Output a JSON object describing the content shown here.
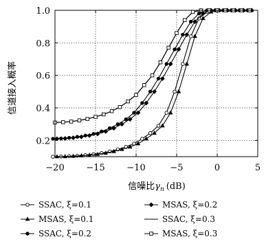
{
  "chart_data": {
    "type": "line",
    "title": "",
    "xlabel": "信噪比γn (dB)",
    "xlabel_parts": {
      "prefix": "信噪比",
      "symbol": "γ",
      "subscript": "n",
      "unit": "(dB)"
    },
    "ylabel": "信道接入概率",
    "xlim": [
      -20,
      5
    ],
    "ylim": [
      0.1,
      1.0
    ],
    "x_ticks": [
      -20,
      -15,
      -10,
      -5,
      0,
      5
    ],
    "x_tick_labels": [
      "−20",
      "−15",
      "−10",
      "−5",
      "0",
      "5"
    ],
    "y_ticks": [
      0.2,
      0.4,
      0.6,
      0.8,
      1.0
    ],
    "y_tick_labels": [
      "0.2",
      "0.4",
      "0.6",
      "0.8",
      "1.0"
    ],
    "grid": true,
    "legend_position": "bottom",
    "x": [
      -20,
      -19,
      -18,
      -17,
      -16,
      -15,
      -14,
      -13,
      -12,
      -11,
      -10,
      -9,
      -8,
      -7,
      -6,
      -5,
      -4,
      -3,
      -2,
      -1,
      0,
      1,
      2,
      3,
      4
    ],
    "series": [
      {
        "name": "SSAC, ξ=0.1",
        "marker": "circle-open",
        "values": [
          0.1,
          0.101,
          0.103,
          0.106,
          0.11,
          0.115,
          0.122,
          0.132,
          0.145,
          0.16,
          0.18,
          0.21,
          0.245,
          0.29,
          0.37,
          0.5,
          0.67,
          0.84,
          0.95,
          0.99,
          1.0,
          1.0,
          1.0,
          1.0,
          1.0
        ]
      },
      {
        "name": "MSAS, ξ=0.1",
        "marker": "triangle",
        "values": [
          0.1,
          0.101,
          0.103,
          0.106,
          0.11,
          0.115,
          0.122,
          0.132,
          0.145,
          0.16,
          0.18,
          0.21,
          0.245,
          0.29,
          0.37,
          0.5,
          0.67,
          0.84,
          0.95,
          0.99,
          1.0,
          1.0,
          1.0,
          1.0,
          1.0
        ]
      },
      {
        "name": "SSAC, ξ=0.2",
        "marker": "circle-filled",
        "values": [
          0.21,
          0.212,
          0.216,
          0.222,
          0.23,
          0.24,
          0.255,
          0.275,
          0.3,
          0.33,
          0.37,
          0.43,
          0.5,
          0.58,
          0.67,
          0.76,
          0.85,
          0.93,
          0.98,
          1.0,
          1.0,
          1.0,
          1.0,
          1.0,
          1.0
        ]
      },
      {
        "name": "MSAS, ξ=0.2",
        "marker": "diamond-filled",
        "values": [
          0.21,
          0.212,
          0.216,
          0.222,
          0.23,
          0.24,
          0.255,
          0.275,
          0.3,
          0.33,
          0.37,
          0.43,
          0.5,
          0.58,
          0.67,
          0.76,
          0.85,
          0.93,
          0.98,
          1.0,
          1.0,
          1.0,
          1.0,
          1.0,
          1.0
        ]
      },
      {
        "name": "SSAC, ξ=0.3",
        "marker": "none",
        "values": [
          0.31,
          0.312,
          0.316,
          0.323,
          0.332,
          0.345,
          0.36,
          0.38,
          0.405,
          0.44,
          0.48,
          0.54,
          0.6,
          0.68,
          0.77,
          0.86,
          0.94,
          0.99,
          1.0,
          1.0,
          1.0,
          1.0,
          1.0,
          1.0,
          1.0
        ]
      },
      {
        "name": "MSAS, ξ=0.3",
        "marker": "square",
        "values": [
          0.31,
          0.312,
          0.316,
          0.323,
          0.332,
          0.345,
          0.36,
          0.38,
          0.405,
          0.44,
          0.48,
          0.54,
          0.6,
          0.68,
          0.77,
          0.86,
          0.94,
          0.99,
          1.0,
          1.0,
          1.0,
          1.0,
          1.0,
          1.0,
          1.0
        ]
      }
    ]
  }
}
